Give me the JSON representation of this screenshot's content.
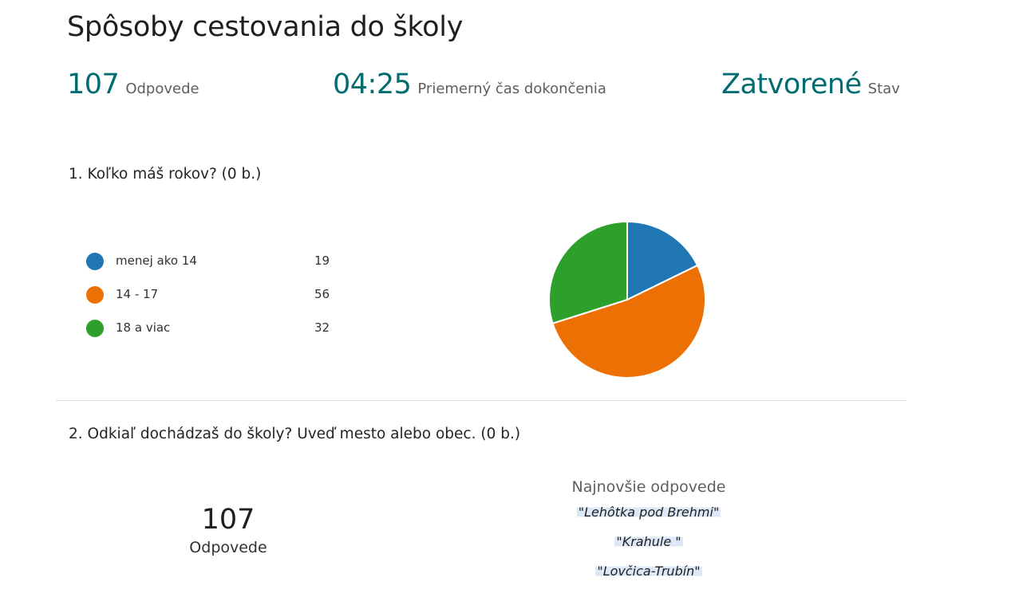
{
  "form": {
    "title": "Spôsoby cestovania do školy"
  },
  "stats": {
    "responses_value": "107",
    "responses_label": "Odpovede",
    "time_value": "04:25",
    "time_label": "Priemerný čas dokončenia",
    "status_value": "Zatvorené",
    "status_label": "Stav"
  },
  "question1": {
    "text": "1.  Koľko máš rokov? (0 b.)",
    "options": [
      {
        "label": "menej ako 14",
        "count": "19",
        "color": "#2077b4"
      },
      {
        "label": "14 - 17",
        "count": "56",
        "color": "#ed7004"
      },
      {
        "label": "18 a viac",
        "count": "32",
        "color": "#2da02c"
      }
    ]
  },
  "chart_data": {
    "type": "pie",
    "title": "",
    "categories": [
      "menej ako 14",
      "14 - 17",
      "18 a viac"
    ],
    "values": [
      19,
      56,
      32
    ],
    "colors": [
      "#2077b4",
      "#ed7004",
      "#2da02c"
    ],
    "legend": "left"
  },
  "question2": {
    "text": "2.  Odkiaľ dochádzaš do školy? Uveď mesto alebo obec. (0 b.)",
    "count_value": "107",
    "count_label": "Odpovede",
    "latest_header": "Najnovšie odpovede",
    "latest_answers": [
      "\"Lehôtka pod Brehmi\"",
      "\"Krahule \"",
      "\"Lovčica-Trubín\""
    ]
  }
}
